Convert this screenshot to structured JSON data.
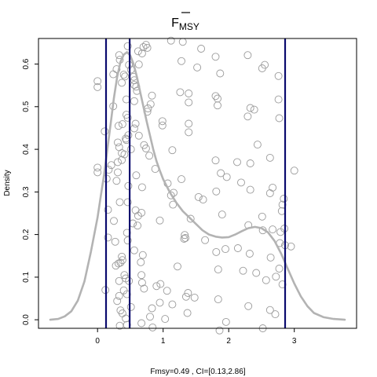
{
  "chart_data": {
    "type": "line",
    "title": "F",
    "title_bar": true,
    "title_subscript": "MSY",
    "ylabel": "Density",
    "footer": "Fmsy=0.49 , CI=[0.13,2.86]",
    "xlim": [
      -0.9,
      3.95
    ],
    "ylim": [
      -0.02,
      0.66
    ],
    "x_ticks": [
      0,
      1,
      2,
      3
    ],
    "y_ticks": [
      0.0,
      0.1,
      0.2,
      0.3,
      0.4,
      0.5,
      0.6
    ],
    "y_tick_labels": [
      "0.0",
      "0.1",
      "0.2",
      "0.3",
      "0.4",
      "0.5",
      "0.6"
    ],
    "colors": {
      "density": "#b3b3b3",
      "vlines": "#0a0a6e",
      "points": "#9a9a9a"
    },
    "vertical_lines": [
      0.13,
      0.49,
      2.86
    ],
    "series": [
      {
        "x": [
          -0.72,
          -0.6,
          -0.5,
          -0.4,
          -0.3,
          -0.2,
          -0.1,
          0.0,
          0.05,
          0.1,
          0.15,
          0.2,
          0.25,
          0.3,
          0.35,
          0.4,
          0.45,
          0.5,
          0.55,
          0.6,
          0.65,
          0.7,
          0.75,
          0.8,
          0.85,
          0.9,
          0.95,
          1.0,
          1.1,
          1.2,
          1.3,
          1.4,
          1.5,
          1.6,
          1.7,
          1.8,
          1.9,
          2.0,
          2.1,
          2.2,
          2.3,
          2.4,
          2.5,
          2.6,
          2.7,
          2.8,
          2.9,
          3.0,
          3.1,
          3.2,
          3.3,
          3.45,
          3.6,
          3.77
        ],
        "y": [
          0.0,
          0.002,
          0.008,
          0.02,
          0.045,
          0.09,
          0.16,
          0.24,
          0.29,
          0.34,
          0.4,
          0.46,
          0.52,
          0.57,
          0.605,
          0.622,
          0.628,
          0.62,
          0.6,
          0.57,
          0.535,
          0.5,
          0.465,
          0.432,
          0.4,
          0.372,
          0.35,
          0.33,
          0.3,
          0.275,
          0.255,
          0.24,
          0.225,
          0.21,
          0.2,
          0.195,
          0.193,
          0.194,
          0.2,
          0.208,
          0.215,
          0.218,
          0.215,
          0.205,
          0.185,
          0.155,
          0.12,
          0.085,
          0.055,
          0.032,
          0.016,
          0.006,
          0.002,
          0.0
        ]
      }
    ],
    "points": [
      [
        0.46,
        0.642
      ],
      [
        0.62,
        0.63
      ],
      [
        0.7,
        0.64
      ],
      [
        0.74,
        0.645
      ],
      [
        0.76,
        0.638
      ],
      [
        0.68,
        0.625
      ],
      [
        1.12,
        0.655
      ],
      [
        1.3,
        0.652
      ],
      [
        1.58,
        0.636
      ],
      [
        1.8,
        0.617
      ],
      [
        1.28,
        0.607
      ],
      [
        2.29,
        0.621
      ],
      [
        0.33,
        0.621
      ],
      [
        0.34,
        0.61
      ],
      [
        0.48,
        0.598
      ],
      [
        0.51,
        0.587
      ],
      [
        0.29,
        0.588
      ],
      [
        0.63,
        0.599
      ],
      [
        2.55,
        0.598
      ],
      [
        2.51,
        0.59
      ],
      [
        2.76,
        0.572
      ],
      [
        1.52,
        0.592
      ],
      [
        1.87,
        0.578
      ],
      [
        0.0,
        0.56
      ],
      [
        0.0,
        0.546
      ],
      [
        0.4,
        0.575
      ],
      [
        0.42,
        0.571
      ],
      [
        0.55,
        0.57
      ],
      [
        0.56,
        0.562
      ],
      [
        0.56,
        0.551
      ],
      [
        0.59,
        0.547
      ],
      [
        0.6,
        0.537
      ],
      [
        0.24,
        0.576
      ],
      [
        0.37,
        0.556
      ],
      [
        1.26,
        0.534
      ],
      [
        1.39,
        0.531
      ],
      [
        0.83,
        0.526
      ],
      [
        1.8,
        0.525
      ],
      [
        1.83,
        0.519
      ],
      [
        0.44,
        0.517
      ],
      [
        0.56,
        0.513
      ],
      [
        0.81,
        0.506
      ],
      [
        0.77,
        0.496
      ],
      [
        0.76,
        0.488
      ],
      [
        1.39,
        0.51
      ],
      [
        0.24,
        0.501
      ],
      [
        1.83,
        0.503
      ],
      [
        2.33,
        0.497
      ],
      [
        2.39,
        0.493
      ],
      [
        2.29,
        0.477
      ],
      [
        2.76,
        0.517
      ],
      [
        2.77,
        0.473
      ],
      [
        0.44,
        0.481
      ],
      [
        0.46,
        0.474
      ],
      [
        0.58,
        0.46
      ],
      [
        0.99,
        0.466
      ],
      [
        0.99,
        0.456
      ],
      [
        0.32,
        0.455
      ],
      [
        0.38,
        0.459
      ],
      [
        1.39,
        0.46
      ],
      [
        1.39,
        0.44
      ],
      [
        0.11,
        0.442
      ],
      [
        0.56,
        0.449
      ],
      [
        0.47,
        0.433
      ],
      [
        0.43,
        0.425
      ],
      [
        0.44,
        0.422
      ],
      [
        0.63,
        0.432
      ],
      [
        0.31,
        0.416
      ],
      [
        0.33,
        0.405
      ],
      [
        0.51,
        0.4
      ],
      [
        0.71,
        0.41
      ],
      [
        0.74,
        0.402
      ],
      [
        0.37,
        0.391
      ],
      [
        0.41,
        0.388
      ],
      [
        0.79,
        0.385
      ],
      [
        1.14,
        0.398
      ],
      [
        2.44,
        0.411
      ],
      [
        0.31,
        0.37
      ],
      [
        0.37,
        0.375
      ],
      [
        1.8,
        0.374
      ],
      [
        2.13,
        0.37
      ],
      [
        2.33,
        0.367
      ],
      [
        2.63,
        0.38
      ],
      [
        0.88,
        0.354
      ],
      [
        0.0,
        0.357
      ],
      [
        0.0,
        0.346
      ],
      [
        0.17,
        0.352
      ],
      [
        0.21,
        0.363
      ],
      [
        0.31,
        0.346
      ],
      [
        0.59,
        0.339
      ],
      [
        3.0,
        0.35
      ],
      [
        1.88,
        0.344
      ],
      [
        1.97,
        0.335
      ],
      [
        0.14,
        0.331
      ],
      [
        0.29,
        0.326
      ],
      [
        0.47,
        0.314
      ],
      [
        0.68,
        0.311
      ],
      [
        1.07,
        0.32
      ],
      [
        1.28,
        0.33
      ],
      [
        2.19,
        0.322
      ],
      [
        2.67,
        0.31
      ],
      [
        2.63,
        0.297
      ],
      [
        2.33,
        0.305
      ],
      [
        1.81,
        0.301
      ],
      [
        1.16,
        0.298
      ],
      [
        1.12,
        0.292
      ],
      [
        1.54,
        0.288
      ],
      [
        1.61,
        0.282
      ],
      [
        2.84,
        0.284
      ],
      [
        2.82,
        0.27
      ],
      [
        1.15,
        0.27
      ],
      [
        0.34,
        0.276
      ],
      [
        0.46,
        0.276
      ],
      [
        0.16,
        0.258
      ],
      [
        0.58,
        0.257
      ],
      [
        0.67,
        0.251
      ],
      [
        0.62,
        0.244
      ],
      [
        0.54,
        0.226
      ],
      [
        0.61,
        0.221
      ],
      [
        0.95,
        0.233
      ],
      [
        1.42,
        0.237
      ],
      [
        1.9,
        0.247
      ],
      [
        2.51,
        0.242
      ],
      [
        0.25,
        0.232
      ],
      [
        2.81,
        0.255
      ],
      [
        0.45,
        0.204
      ],
      [
        0.46,
        0.186
      ],
      [
        0.16,
        0.193
      ],
      [
        0.27,
        0.183
      ],
      [
        1.33,
        0.199
      ],
      [
        1.34,
        0.192
      ],
      [
        1.32,
        0.19
      ],
      [
        1.64,
        0.187
      ],
      [
        2.3,
        0.222
      ],
      [
        2.52,
        0.21
      ],
      [
        2.67,
        0.212
      ],
      [
        2.85,
        0.214
      ],
      [
        2.79,
        0.206
      ],
      [
        2.78,
        0.18
      ],
      [
        2.95,
        0.172
      ],
      [
        2.86,
        0.175
      ],
      [
        0.56,
        0.163
      ],
      [
        0.69,
        0.152
      ],
      [
        1.81,
        0.159
      ],
      [
        1.95,
        0.166
      ],
      [
        2.14,
        0.168
      ],
      [
        2.32,
        0.155
      ],
      [
        2.64,
        0.146
      ],
      [
        0.38,
        0.14
      ],
      [
        0.37,
        0.148
      ],
      [
        0.35,
        0.134
      ],
      [
        0.32,
        0.132
      ],
      [
        0.28,
        0.127
      ],
      [
        0.66,
        0.135
      ],
      [
        1.22,
        0.125
      ],
      [
        1.84,
        0.118
      ],
      [
        2.22,
        0.115
      ],
      [
        2.42,
        0.11
      ],
      [
        2.77,
        0.12
      ],
      [
        0.67,
        0.105
      ],
      [
        0.41,
        0.105
      ],
      [
        0.43,
        0.097
      ],
      [
        0.48,
        0.091
      ],
      [
        0.33,
        0.091
      ],
      [
        0.68,
        0.087
      ],
      [
        0.96,
        0.084
      ],
      [
        0.9,
        0.079
      ],
      [
        0.71,
        0.073
      ],
      [
        0.4,
        0.069
      ],
      [
        0.12,
        0.07
      ],
      [
        2.57,
        0.093
      ],
      [
        2.72,
        0.101
      ],
      [
        2.82,
        0.083
      ],
      [
        1.38,
        0.063
      ],
      [
        1.35,
        0.054
      ],
      [
        1.48,
        0.052
      ],
      [
        1.06,
        0.068
      ],
      [
        0.45,
        0.06
      ],
      [
        0.33,
        0.056
      ],
      [
        0.3,
        0.044
      ],
      [
        1.84,
        0.048
      ],
      [
        0.95,
        0.04
      ],
      [
        1.14,
        0.036
      ],
      [
        0.83,
        0.027
      ],
      [
        0.51,
        0.03
      ],
      [
        2.3,
        0.032
      ],
      [
        2.63,
        0.023
      ],
      [
        2.71,
        0.013
      ],
      [
        0.35,
        0.022
      ],
      [
        0.38,
        0.015
      ],
      [
        1.37,
        0.016
      ],
      [
        0.8,
        0.007
      ],
      [
        1.03,
        0.002
      ],
      [
        0.43,
        0.003
      ],
      [
        0.67,
        -0.008
      ],
      [
        0.34,
        -0.014
      ],
      [
        0.45,
        -0.012
      ],
      [
        0.84,
        -0.018
      ],
      [
        1.86,
        -0.025
      ],
      [
        1.96,
        -0.005
      ],
      [
        2.52,
        -0.02
      ]
    ]
  }
}
